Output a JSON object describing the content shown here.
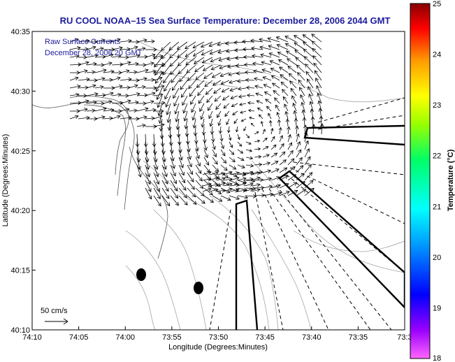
{
  "chart_data": {
    "type": "vector-field-map",
    "title": "RU COOL  NOAA–15  Sea Surface Temperature:  December 28, 2006 2044 GMT",
    "xlabel": "Longitude (Degrees:Minutes)",
    "ylabel": "Latitude (Degrees:Minutes)",
    "x_ticks": [
      "74:10",
      "74:05",
      "74:00",
      "73:55",
      "73:50",
      "73:45",
      "73:40",
      "73:35",
      "73:3"
    ],
    "y_ticks": [
      "40:35",
      "40:30",
      "40:25",
      "40:20",
      "40:15",
      "40:10"
    ],
    "xlim_minutes_west": [
      70,
      30
    ],
    "ylim_minutes": [
      10,
      35
    ],
    "legend_lines": [
      "Raw Surface Currents",
      "December 28, 2006 20 GMT"
    ],
    "scale_label": "50 cm/s",
    "colorbar": {
      "label": "Temperature (°C)",
      "range": [
        18,
        25
      ],
      "ticks": [
        "25",
        "24",
        "23",
        "22",
        "21",
        "20",
        "19",
        "18"
      ],
      "colors": [
        "#ff00ff",
        "#0000ff",
        "#00ffff",
        "#00ff00",
        "#ffff00",
        "#ff8000",
        "#ff0000",
        "#800000"
      ]
    },
    "vector_field": {
      "description_rows": "arrows eddy rotating clockwise centered near 40:27N 73:49W",
      "reference_speed_cm_s": 50
    }
  }
}
